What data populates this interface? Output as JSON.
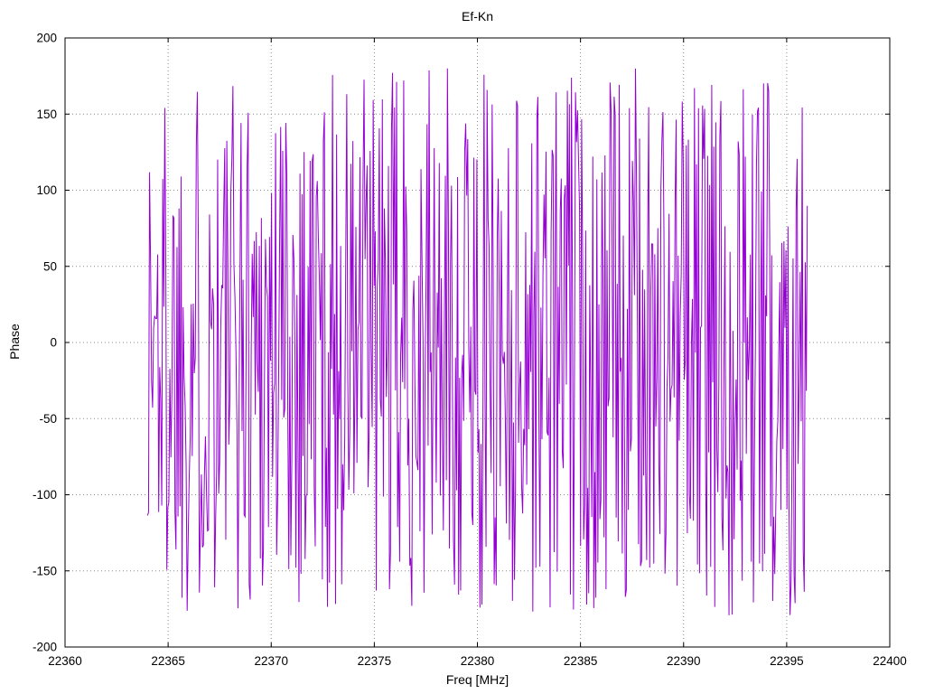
{
  "page": {
    "background": "#ffffff"
  },
  "chart_data": {
    "type": "line",
    "title": "Ef-Kn",
    "xlabel": "Freq [MHz]",
    "ylabel": "Phase",
    "xlim": [
      22360,
      22400
    ],
    "ylim": [
      -200,
      200
    ],
    "xticks": [
      22360,
      22365,
      22370,
      22375,
      22380,
      22385,
      22390,
      22395,
      22400
    ],
    "yticks": [
      -200,
      -150,
      -100,
      -50,
      0,
      50,
      100,
      150,
      200
    ],
    "grid": true,
    "legend": "none",
    "grid_color": "#8a8a8a",
    "border_color": "#000000",
    "series": [
      {
        "name": "phase",
        "color": "#9400d3",
        "style": "lines",
        "x_start": 22364.0,
        "x_end": 22396.0,
        "n_points": 650,
        "y_min": -180,
        "y_max": 180,
        "distribution": "uniform-wrapped-phase",
        "seed": 1337
      }
    ]
  }
}
